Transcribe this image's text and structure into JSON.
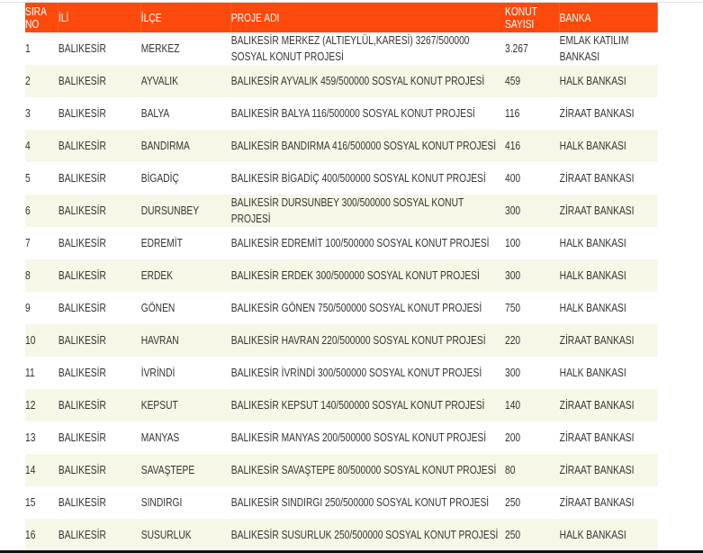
{
  "colors": {
    "header_bg": "#fc4a0c",
    "row_alt": "#f7f7e7"
  },
  "table": {
    "headers": [
      "SIRA NO",
      "İLİ",
      "İLÇE",
      "PROJE ADI",
      "KONUT SAYISI",
      "BANKA"
    ],
    "rows": [
      [
        "1",
        "BALIKESİR",
        "MERKEZ",
        "BALIKESİR MERKEZ (ALTIEYLÜL,KARESİ) 3267/500000 SOSYAL KONUT PROJESİ",
        "3.267",
        "EMLAK KATILIM BANKASI"
      ],
      [
        "2",
        "BALIKESİR",
        "AYVALIK",
        "BALIKESİR AYVALIK 459/500000 SOSYAL KONUT PROJESİ",
        "459",
        "HALK BANKASI"
      ],
      [
        "3",
        "BALIKESİR",
        "BALYA",
        "BALIKESİR BALYA 116/500000 SOSYAL KONUT PROJESİ",
        "116",
        "ZİRAAT BANKASI"
      ],
      [
        "4",
        "BALIKESİR",
        "BANDIRMA",
        "BALIKESİR BANDIRMA 416/500000 SOSYAL KONUT PROJESİ",
        "416",
        "HALK BANKASI"
      ],
      [
        "5",
        "BALIKESİR",
        "BİGADİÇ",
        "BALIKESİR BİGADİÇ 400/500000 SOSYAL KONUT PROJESİ",
        "400",
        "ZİRAAT BANKASI"
      ],
      [
        "6",
        "BALIKESİR",
        "DURSUNBEY",
        "BALIKESİR DURSUNBEY 300/500000 SOSYAL KONUT PROJESİ",
        "300",
        "ZİRAAT BANKASI"
      ],
      [
        "7",
        "BALIKESİR",
        "EDREMİT",
        "BALIKESİR EDREMİT 100/500000 SOSYAL KONUT PROJESİ",
        "100",
        "HALK BANKASI"
      ],
      [
        "8",
        "BALIKESİR",
        "ERDEK",
        "BALIKESİR ERDEK 300/500000 SOSYAL KONUT PROJESİ",
        "300",
        "HALK BANKASI"
      ],
      [
        "9",
        "BALIKESİR",
        "GÖNEN",
        "BALIKESİR GÖNEN 750/500000 SOSYAL KONUT PROJESİ",
        "750",
        "HALK BANKASI"
      ],
      [
        "10",
        "BALIKESİR",
        "HAVRAN",
        "BALIKESİR HAVRAN 220/500000 SOSYAL KONUT PROJESİ",
        "220",
        "ZİRAAT BANKASI"
      ],
      [
        "11",
        "BALIKESİR",
        "İVRİNDİ",
        "BALIKESİR İVRİNDİ 300/500000 SOSYAL KONUT PROJESİ",
        "300",
        "HALK BANKASI"
      ],
      [
        "12",
        "BALIKESİR",
        "KEPSUT",
        "BALIKESİR KEPSUT 140/500000 SOSYAL KONUT PROJESİ",
        "140",
        "ZİRAAT BANKASI"
      ],
      [
        "13",
        "BALIKESİR",
        "MANYAS",
        "BALIKESİR MANYAS 200/500000 SOSYAL KONUT PROJESİ",
        "200",
        "ZİRAAT BANKASI"
      ],
      [
        "14",
        "BALIKESİR",
        "SAVAŞTEPE",
        "BALIKESİR SAVAŞTEPE 80/500000 SOSYAL KONUT PROJESİ",
        "80",
        "ZİRAAT BANKASI"
      ],
      [
        "15",
        "BALIKESİR",
        "SINDIRGI",
        "BALIKESİR SINDIRGI 250/500000 SOSYAL KONUT PROJESİ",
        "250",
        "ZİRAAT BANKASI"
      ],
      [
        "16",
        "BALIKESİR",
        "SUSURLUK",
        "BALIKESİR SUSURLUK 250/500000 SOSYAL KONUT PROJESİ",
        "250",
        "HALK BANKASI"
      ]
    ]
  }
}
